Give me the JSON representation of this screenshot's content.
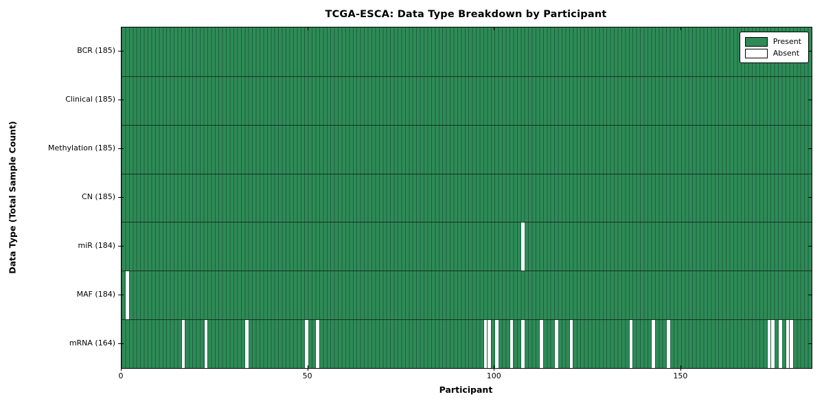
{
  "title": "TCGA-ESCA: Data Type Breakdown by Participant",
  "xlabel": "Participant",
  "ylabel": "Data Type (Total Sample Count)",
  "n_participants": 185,
  "x_ticks": [
    0,
    50,
    100,
    150
  ],
  "legend": [
    {
      "label": "Present",
      "color": "#2e8b57"
    },
    {
      "label": "Absent",
      "color": "#ffffff"
    }
  ],
  "chart_data": {
    "type": "heatmap",
    "title": "TCGA-ESCA: Data Type Breakdown by Participant",
    "xlabel": "Participant",
    "ylabel": "Data Type (Total Sample Count)",
    "x_range": [
      0,
      185
    ],
    "legend_position": "upper right",
    "grid": false,
    "colors": {
      "present": "#2e8b57",
      "absent": "#ffffff",
      "edge": "#1d5e3d",
      "row_divider": "#15301f"
    },
    "rows": [
      {
        "label": "BCR (185)",
        "data_type": "BCR",
        "count": 185,
        "absent_participants": []
      },
      {
        "label": "Clinical (185)",
        "data_type": "Clinical",
        "count": 185,
        "absent_participants": []
      },
      {
        "label": "Methylation (185)",
        "data_type": "Methylation",
        "count": 185,
        "absent_participants": []
      },
      {
        "label": "CN (185)",
        "data_type": "CN",
        "count": 185,
        "absent_participants": []
      },
      {
        "label": "miR (184)",
        "data_type": "miR",
        "count": 184,
        "absent_participants": [
          107
        ]
      },
      {
        "label": "MAF (184)",
        "data_type": "MAF",
        "count": 184,
        "absent_participants": [
          1
        ]
      },
      {
        "label": "mRNA (164)",
        "data_type": "mRNA",
        "count": 164,
        "absent_participants": [
          16,
          22,
          33,
          49,
          52,
          97,
          98,
          100,
          104,
          107,
          112,
          116,
          120,
          136,
          142,
          146,
          173,
          174,
          176,
          178,
          179
        ]
      }
    ]
  }
}
